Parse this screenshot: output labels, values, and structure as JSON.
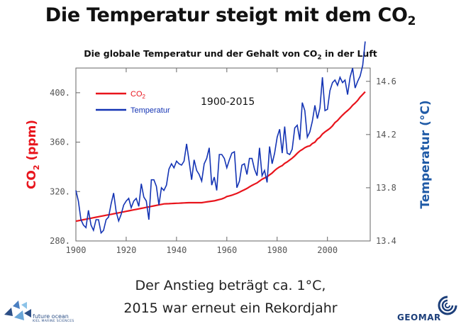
{
  "slide": {
    "title": "Die Temperatur steigt mit dem CO",
    "title_sub": "2",
    "subtitle": "Die globale Temperatur und der Gehalt von CO",
    "subtitle_sub": "2",
    "subtitle_tail": " in der Luft",
    "caption_line1": "Der Anstieg beträgt ca. 1°C,",
    "caption_line2": "2015 war erneut ein Rekordjahr"
  },
  "logos": {
    "left_text": "future ocean",
    "left_subtext": "KIEL MARINE SCIENCES",
    "right_text": "GEOMAR"
  },
  "colors": {
    "co2": "#e8141c",
    "temperature": "#1434b4",
    "temperature_axis_label": "#1f5aa6",
    "co2_axis_label": "#e8141c"
  },
  "chart_data": {
    "type": "line",
    "period_label": "1900-2015",
    "x": [
      1900,
      1901,
      1902,
      1903,
      1904,
      1905,
      1906,
      1907,
      1908,
      1909,
      1910,
      1911,
      1912,
      1913,
      1914,
      1915,
      1916,
      1917,
      1918,
      1919,
      1920,
      1921,
      1922,
      1923,
      1924,
      1925,
      1926,
      1927,
      1928,
      1929,
      1930,
      1931,
      1932,
      1933,
      1934,
      1935,
      1936,
      1937,
      1938,
      1939,
      1940,
      1941,
      1942,
      1943,
      1944,
      1945,
      1946,
      1947,
      1948,
      1949,
      1950,
      1951,
      1952,
      1953,
      1954,
      1955,
      1956,
      1957,
      1958,
      1959,
      1960,
      1961,
      1962,
      1963,
      1964,
      1965,
      1966,
      1967,
      1968,
      1969,
      1970,
      1971,
      1972,
      1973,
      1974,
      1975,
      1976,
      1977,
      1978,
      1979,
      1980,
      1981,
      1982,
      1983,
      1984,
      1985,
      1986,
      1987,
      1988,
      1989,
      1990,
      1991,
      1992,
      1993,
      1994,
      1995,
      1996,
      1997,
      1998,
      1999,
      2000,
      2001,
      2002,
      2003,
      2004,
      2005,
      2006,
      2007,
      2008,
      2009,
      2010,
      2011,
      2012,
      2013,
      2014,
      2015
    ],
    "xlim": [
      1900,
      2017
    ],
    "x_ticks": [
      "1900",
      "1920",
      "1940",
      "1960",
      "1980",
      "2000"
    ],
    "left_axis": {
      "label": "CO",
      "label_sub": "2",
      "label_tail": " (ppm)",
      "ylim": [
        280,
        420
      ],
      "ticks": [
        "280.",
        "320.",
        "360.",
        "400."
      ]
    },
    "right_axis": {
      "label": "Temperatur (°C)",
      "ylim": [
        13.4,
        14.7
      ],
      "ticks": [
        "13.4",
        "13.8",
        "14.2",
        "14.6"
      ]
    },
    "series": [
      {
        "name": "CO",
        "name_sub": "2",
        "axis": "left",
        "values": [
          296,
          296.4,
          296.8,
          297.2,
          297.6,
          298,
          298.4,
          298.8,
          299.2,
          299.6,
          300,
          300.4,
          300.8,
          301.2,
          301.6,
          302,
          302.4,
          302.8,
          303.2,
          303.6,
          304,
          304.4,
          304.8,
          305.2,
          305.6,
          306,
          306.4,
          306.8,
          307.2,
          307.6,
          308,
          308.4,
          308.8,
          309.2,
          309.6,
          310,
          310.1,
          310.2,
          310.3,
          310.4,
          310.5,
          310.6,
          310.7,
          310.8,
          310.9,
          311,
          311,
          311,
          311,
          311,
          311,
          311.3,
          311.6,
          311.9,
          312.2,
          312.5,
          313,
          313.5,
          314,
          314.8,
          316,
          316.5,
          317,
          317.8,
          318.5,
          319.5,
          320.5,
          321.5,
          322.5,
          323.8,
          325,
          326,
          327,
          328.5,
          330,
          331,
          332,
          333.5,
          335,
          337,
          338.7,
          340,
          341,
          342.8,
          344,
          345.5,
          347,
          348.9,
          351,
          352.8,
          354,
          355.5,
          356.5,
          357,
          358.9,
          360,
          362.5,
          364,
          366.6,
          368.3,
          369.7,
          371.1,
          373.2,
          375.8,
          377.5,
          379.8,
          381.9,
          383.8,
          385.6,
          387.4,
          389.9,
          391.6,
          393.8,
          396.5,
          398.6,
          400.8
        ]
      },
      {
        "name": "Temperatur",
        "axis": "right",
        "values": [
          13.78,
          13.7,
          13.56,
          13.52,
          13.5,
          13.63,
          13.52,
          13.48,
          13.56,
          13.56,
          13.46,
          13.48,
          13.56,
          13.58,
          13.68,
          13.76,
          13.62,
          13.55,
          13.6,
          13.67,
          13.7,
          13.72,
          13.65,
          13.7,
          13.72,
          13.66,
          13.83,
          13.73,
          13.7,
          13.56,
          13.86,
          13.86,
          13.81,
          13.67,
          13.8,
          13.78,
          13.82,
          13.94,
          13.98,
          13.95,
          14.0,
          13.98,
          13.97,
          14.0,
          14.13,
          14.0,
          13.86,
          14.01,
          13.93,
          13.9,
          13.85,
          13.98,
          14.02,
          14.1,
          13.82,
          13.88,
          13.78,
          14.05,
          14.05,
          14.02,
          13.95,
          14.01,
          14.06,
          14.07,
          13.8,
          13.85,
          13.97,
          13.98,
          13.9,
          14.02,
          14.02,
          13.94,
          13.89,
          14.1,
          13.89,
          13.93,
          13.84,
          14.11,
          13.98,
          14.06,
          14.18,
          14.24,
          14.06,
          14.26,
          14.06,
          14.05,
          14.09,
          14.25,
          14.27,
          14.16,
          14.44,
          14.38,
          14.18,
          14.22,
          14.3,
          14.42,
          14.32,
          14.4,
          14.63,
          14.38,
          14.39,
          14.53,
          14.59,
          14.61,
          14.57,
          14.63,
          14.59,
          14.61,
          14.5,
          14.63,
          14.7,
          14.55,
          14.6,
          14.64,
          14.72,
          14.9
        ]
      }
    ],
    "legend_position": "top-left",
    "grid": false
  }
}
